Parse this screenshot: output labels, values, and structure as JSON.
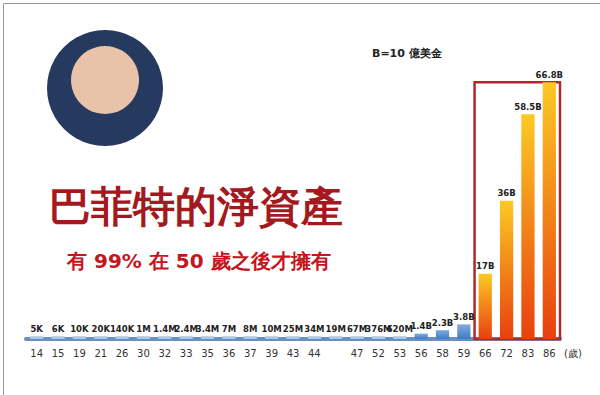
{
  "chart_data": {
    "type": "bar",
    "title": "巴菲特的淨資產",
    "subtitle": "有 99% 在 50 歲之後才擁有",
    "annotation": "B=10 億美金",
    "x_label": "(歲)",
    "categories": [
      "14",
      "15",
      "19",
      "21",
      "26",
      "30",
      "32",
      "33",
      "35",
      "36",
      "37",
      "39",
      "43",
      "44",
      null,
      "47",
      "52",
      "53",
      "56",
      "58",
      "59",
      "66",
      "72",
      "83",
      "86"
    ],
    "values": [
      5000,
      6000,
      10000,
      20000,
      140000,
      1000000,
      1400000,
      2400000,
      3400000,
      7000000,
      8000000,
      10000000,
      25000000,
      34000000,
      19000000,
      67000000,
      376000000,
      620000000,
      1400000000,
      2300000000,
      3800000000,
      17000000000,
      36000000000,
      58500000000,
      66800000000
    ],
    "value_labels": [
      "5K",
      "6K",
      "10K",
      "20K",
      "140K",
      "1M",
      "1.4M",
      "2.4M",
      "3.4M",
      "7M",
      "8M",
      "10M",
      "25M",
      "34M",
      "19M",
      "67M",
      "376M",
      "620M",
      "1.4B",
      "2.3B",
      "3.8B",
      "17B",
      "36B",
      "58.5B",
      "66.8B"
    ],
    "colors": [
      "#9cc3e6",
      "#9cc3e6",
      "#9cc3e6",
      "#9cc3e6",
      "#9cc3e6",
      "#9cc3e6",
      "#9cc3e6",
      "#9cc3e6",
      "#9cc3e6",
      "#9cc3e6",
      "#9cc3e6",
      "#9cc3e6",
      "#9cc3e6",
      "#9cc3e6",
      "#9cc3e6",
      "#9cc3e6",
      "#9cc3e6",
      "#9cc3e6",
      "#3d7cc9",
      "#3d7cc9",
      "#3d7cc9",
      "#e8400e",
      "#e8400e",
      "#e8400e",
      "#e8400e"
    ],
    "ylim": [
      0,
      70000000000
    ],
    "yticks": [
      0,
      70000000000
    ],
    "tick_labels": "x",
    "grid": false,
    "data_labels": true
  }
}
